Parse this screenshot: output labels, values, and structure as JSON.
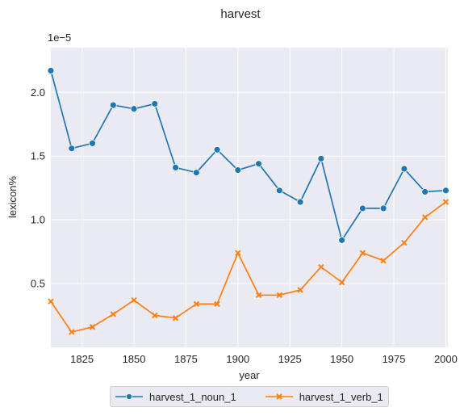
{
  "chart_data": {
    "type": "line",
    "title": "harvest",
    "xlabel": "year",
    "ylabel": "lexicon%",
    "y_offset_label": "1e−5",
    "xlim": [
      1810,
      2001
    ],
    "ylim": [
      0.0,
      2.35
    ],
    "x_ticks": [
      1825,
      1850,
      1875,
      1900,
      1925,
      1950,
      1975,
      2000
    ],
    "y_ticks": [
      0.5,
      1.0,
      1.5,
      2.0
    ],
    "y_tick_labels": [
      "0.5",
      "1.0",
      "1.5",
      "2.0"
    ],
    "grid": true,
    "legend_position": "bottom-center-outside",
    "x": [
      1810,
      1820,
      1830,
      1840,
      1850,
      1860,
      1870,
      1880,
      1890,
      1900,
      1910,
      1920,
      1930,
      1940,
      1950,
      1960,
      1970,
      1980,
      1990,
      2000
    ],
    "series": [
      {
        "name": "harvest_1_noun_1",
        "color": "#1f77b4",
        "marker": "circle",
        "values": [
          2.17,
          1.56,
          1.6,
          1.9,
          1.87,
          1.91,
          1.41,
          1.37,
          1.55,
          1.39,
          1.44,
          1.23,
          1.14,
          1.48,
          0.84,
          1.09,
          1.09,
          1.4,
          1.22,
          1.23
        ]
      },
      {
        "name": "harvest_1_verb_1",
        "color": "#ff7f0e",
        "marker": "x",
        "values": [
          0.36,
          0.12,
          0.16,
          0.26,
          0.37,
          0.25,
          0.23,
          0.34,
          0.34,
          0.74,
          0.41,
          0.41,
          0.45,
          0.63,
          0.51,
          0.74,
          0.68,
          0.82,
          1.02,
          1.14
        ]
      }
    ]
  }
}
